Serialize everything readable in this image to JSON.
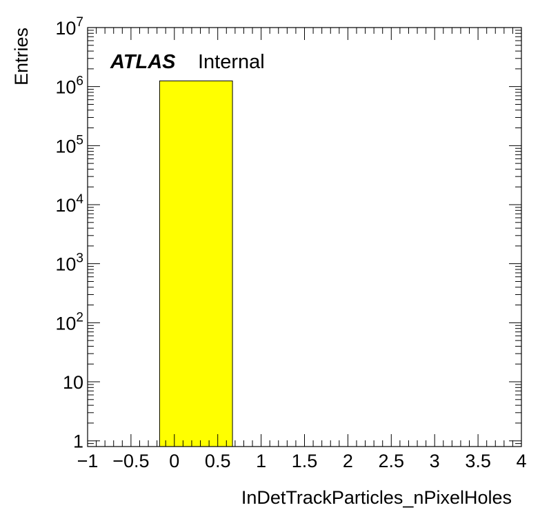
{
  "chart_data": {
    "type": "bar",
    "xlabel": "InDetTrackParticles_nPixelHoles",
    "ylabel": "Entries",
    "xlim": [
      -1,
      4
    ],
    "ylim": [
      0.8,
      10000000
    ],
    "yscale": "log",
    "x_ticks": [
      {
        "v": -1,
        "label": "−1"
      },
      {
        "v": -0.5,
        "label": "−0.5"
      },
      {
        "v": 0,
        "label": "0"
      },
      {
        "v": 0.5,
        "label": "0.5"
      },
      {
        "v": 1,
        "label": "1"
      },
      {
        "v": 1.5,
        "label": "1.5"
      },
      {
        "v": 2,
        "label": "2"
      },
      {
        "v": 2.5,
        "label": "2.5"
      },
      {
        "v": 3,
        "label": "3"
      },
      {
        "v": 3.5,
        "label": "3.5"
      },
      {
        "v": 4,
        "label": "4"
      }
    ],
    "y_ticks": [
      {
        "v": 1,
        "base": "1",
        "exp": ""
      },
      {
        "v": 10,
        "base": "10",
        "exp": ""
      },
      {
        "v": 100,
        "base": "10",
        "exp": "2"
      },
      {
        "v": 1000,
        "base": "10",
        "exp": "3"
      },
      {
        "v": 10000,
        "base": "10",
        "exp": "4"
      },
      {
        "v": 100000,
        "base": "10",
        "exp": "5"
      },
      {
        "v": 1000000,
        "base": "10",
        "exp": "6"
      },
      {
        "v": 10000000,
        "base": "10",
        "exp": "7"
      }
    ],
    "bars": [
      {
        "x0": -0.17,
        "x1": 0.67,
        "value": 1250000
      }
    ],
    "bar_color": "#ffff00",
    "label_main": "ATLAS",
    "label_sub": "Internal"
  }
}
